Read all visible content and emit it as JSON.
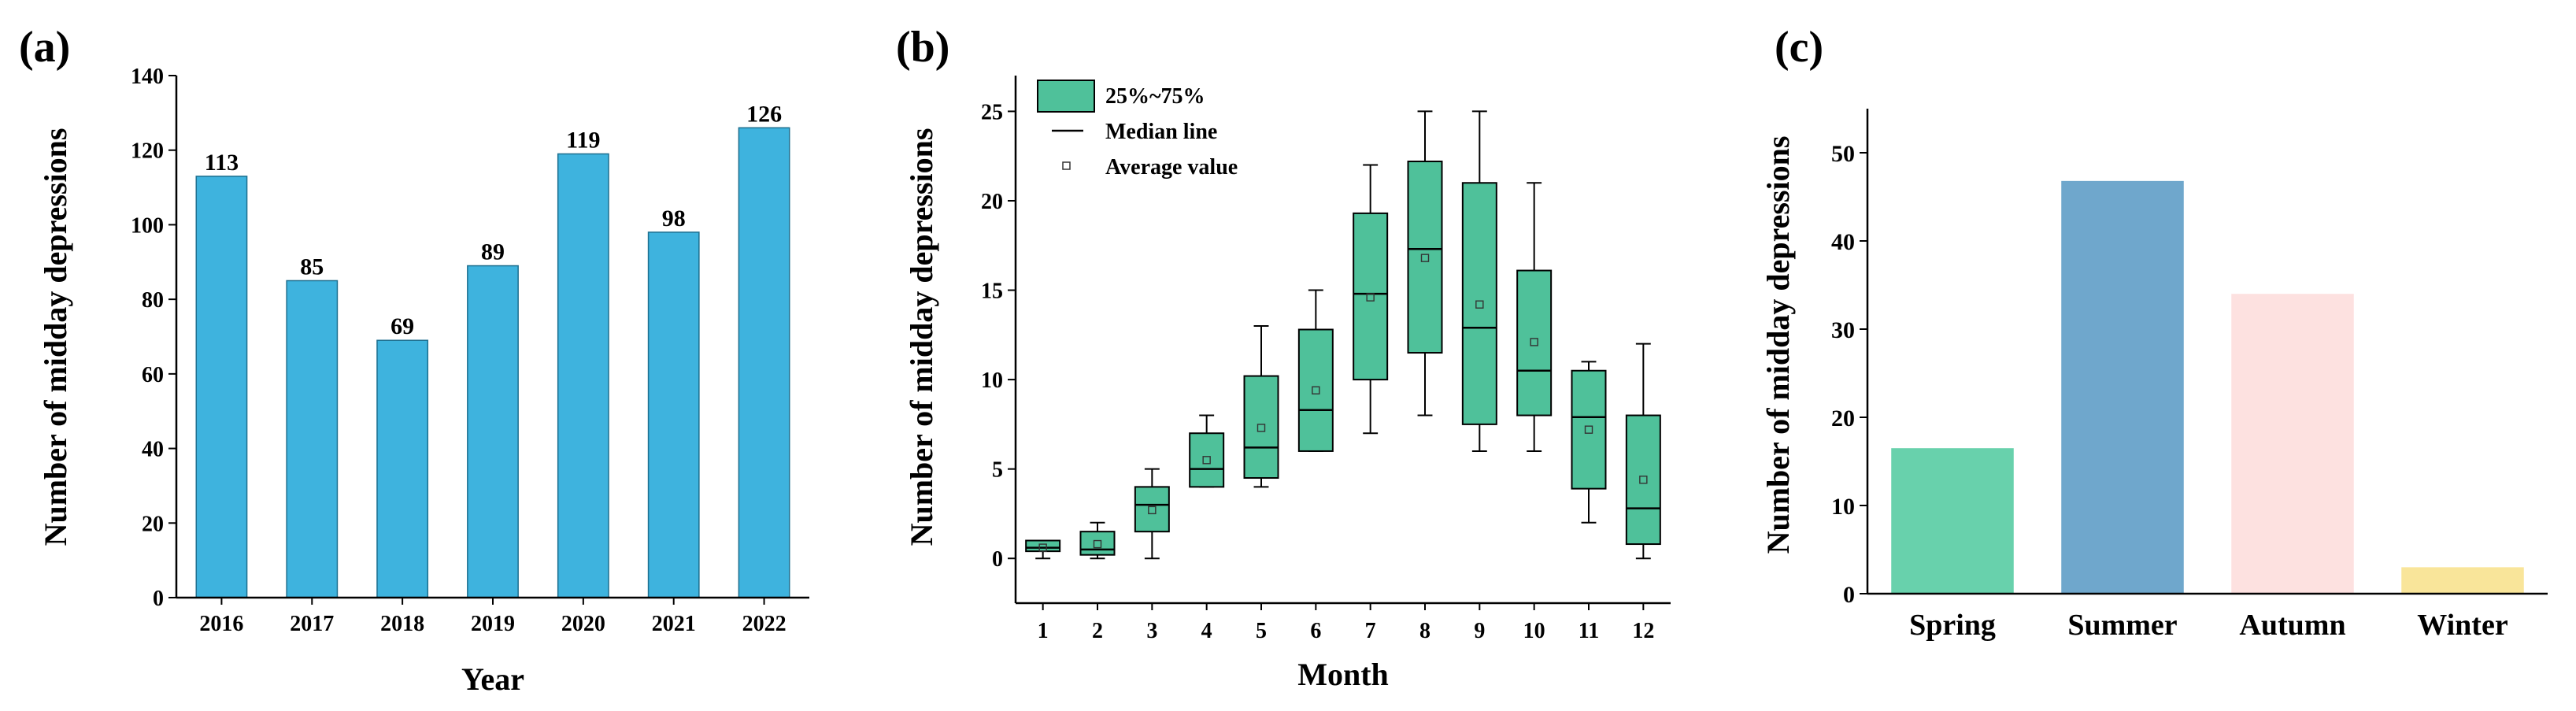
{
  "colors": {
    "bar_a": "#3eb3de",
    "box_b": "#4fc19a",
    "c_spring": "#68d1ac",
    "c_summer": "#6fa7cc",
    "c_autumn": "#fde1e0",
    "c_winter": "#f9e59a"
  },
  "chart_data": [
    {
      "panel": "(a)",
      "type": "bar",
      "categories": [
        "2016",
        "2017",
        "2018",
        "2019",
        "2020",
        "2021",
        "2022"
      ],
      "values": [
        113,
        85,
        69,
        89,
        119,
        98,
        126
      ],
      "data_labels": [
        "113",
        "85",
        "69",
        "89",
        "119",
        "98",
        "126"
      ],
      "xlabel": "Year",
      "ylabel": "Number of midday depressions",
      "ylim": [
        0,
        140
      ],
      "yticks": [
        0,
        20,
        40,
        60,
        80,
        100,
        120,
        140
      ],
      "ytick_labels": [
        "0",
        "20",
        "40",
        "60",
        "80",
        "100",
        "120",
        "140"
      ]
    },
    {
      "panel": "(b)",
      "type": "box",
      "categories": [
        "1",
        "2",
        "3",
        "4",
        "5",
        "6",
        "7",
        "8",
        "9",
        "10",
        "11",
        "12"
      ],
      "boxes": [
        {
          "min": 0,
          "q1": 0.4,
          "median": 0.6,
          "q3": 1,
          "max": 1,
          "mean": 0.6
        },
        {
          "min": 0,
          "q1": 0.2,
          "median": 0.5,
          "q3": 1.5,
          "max": 2,
          "mean": 0.8
        },
        {
          "min": 0,
          "q1": 1.5,
          "median": 3,
          "q3": 4,
          "max": 5,
          "mean": 2.7
        },
        {
          "min": 4,
          "q1": 4,
          "median": 5,
          "q3": 7,
          "max": 8,
          "mean": 5.5
        },
        {
          "min": 4,
          "q1": 4.5,
          "median": 6.2,
          "q3": 10.2,
          "max": 13,
          "mean": 7.3
        },
        {
          "min": 6,
          "q1": 6,
          "median": 8.3,
          "q3": 12.8,
          "max": 15,
          "mean": 9.4
        },
        {
          "min": 7,
          "q1": 10,
          "median": 14.8,
          "q3": 19.3,
          "max": 22,
          "mean": 14.6
        },
        {
          "min": 8,
          "q1": 11.5,
          "median": 17.3,
          "q3": 22.2,
          "max": 25,
          "mean": 16.8
        },
        {
          "min": 6,
          "q1": 7.5,
          "median": 12.9,
          "q3": 21,
          "max": 25,
          "mean": 14.2
        },
        {
          "min": 6,
          "q1": 8,
          "median": 10.5,
          "q3": 16.1,
          "max": 21,
          "mean": 12.1
        },
        {
          "min": 2,
          "q1": 3.9,
          "median": 7.9,
          "q3": 10.5,
          "max": 11,
          "mean": 7.2
        },
        {
          "min": 0,
          "q1": 0.8,
          "median": 2.8,
          "q3": 8,
          "max": 12,
          "mean": 4.4
        }
      ],
      "xlabel": "Month",
      "ylabel": "Number of midday depressions",
      "ylim": [
        -2.5,
        27
      ],
      "yticks": [
        0,
        5,
        10,
        15,
        20,
        25
      ],
      "ytick_labels": [
        "0",
        "5",
        "10",
        "15",
        "20",
        "25"
      ],
      "legend": [
        "25%~75%",
        "Median line",
        "Average value"
      ],
      "legend_position": "top-left"
    },
    {
      "panel": "(c)",
      "type": "bar",
      "categories": [
        "Spring",
        "Summer",
        "Autumn",
        "Winter"
      ],
      "values": [
        16.5,
        46.8,
        34,
        3
      ],
      "xlabel": "",
      "ylabel": "Number of midday depressions",
      "ylim": [
        0,
        55
      ],
      "yticks": [
        0,
        10,
        20,
        30,
        40,
        50
      ],
      "ytick_labels": [
        "0",
        "10",
        "20",
        "30",
        "40",
        "50"
      ]
    }
  ]
}
